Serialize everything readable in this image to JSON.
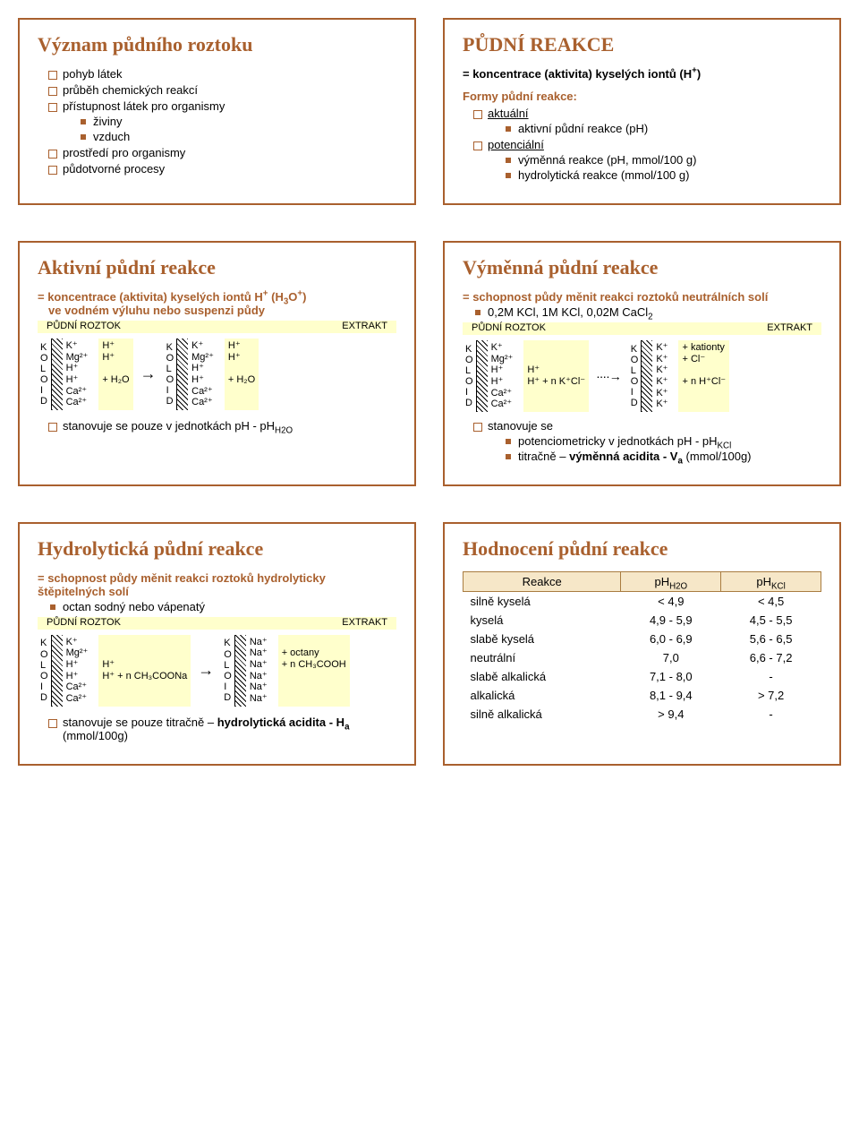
{
  "colors": {
    "accent": "#a9602e",
    "highlight": "#ffffcc",
    "table_header_bg": "#f6e7c8",
    "table_border": "#a97c40"
  },
  "panel1": {
    "title": "Význam půdního roztoku",
    "items": [
      "pohyb látek",
      "průběh chemických reakcí",
      "přístupnost látek pro organismy"
    ],
    "nested1": [
      "živiny",
      "vzduch"
    ],
    "items2": [
      "prostředí pro organismy",
      "půdotvorné procesy"
    ]
  },
  "panel2": {
    "title": "PŮDNÍ REAKCE",
    "def": "= koncentrace (aktivita) kyselých iontů (H",
    "def_sup": "+",
    "def_end": ")",
    "forms_label": "Formy půdní reakce:",
    "f1": "aktuální",
    "f1n": "aktivní půdní reakce (pH)",
    "f2": "potenciální",
    "f2n1": "výměnná reakce (pH, mmol/100 g)",
    "f2n2": "hydrolytická reakce (mmol/100 g)"
  },
  "panel3": {
    "title": "Aktivní půdní reakce",
    "def1": "= koncentrace (aktivita) kyselých iontů H",
    "def2": " (H",
    "def3": "O",
    "def4": ")",
    "def_line2": "ve vodném výluhu nebo suspenzi půdy",
    "label_left": "PŮDNÍ ROZTOK",
    "label_right": "EXTRAKT",
    "koloid": [
      "K",
      "O",
      "L",
      "O",
      "I",
      "D"
    ],
    "ions_left": [
      "K⁺",
      "Mg²⁺",
      "H⁺",
      "H⁺",
      "Ca²⁺",
      "Ca²⁺"
    ],
    "extras_left": [
      "H⁺",
      "H⁺",
      "",
      "+ H₂O",
      "",
      ""
    ],
    "ions_right": [
      "K⁺",
      "Mg²⁺",
      "H⁺",
      "H⁺",
      "Ca²⁺",
      "Ca²⁺"
    ],
    "extras_right": [
      "H⁺",
      "H⁺",
      "",
      "+ H₂O",
      "",
      ""
    ],
    "note": "stanovuje se pouze v jednotkách pH - pH",
    "note_sub": "H2O"
  },
  "panel4": {
    "title": "Výměnná půdní reakce",
    "def": "= schopnost půdy měnit reakci roztoků neutrálních solí",
    "salts": "0,2M KCl, 1M KCl, 0,02M CaCl",
    "salts_sub": "2",
    "label_left": "PŮDNÍ ROZTOK",
    "label_right": "EXTRAKT",
    "koloid": [
      "K",
      "O",
      "L",
      "O",
      "I",
      "D"
    ],
    "ions_left": [
      "K⁺",
      "Mg²⁺",
      "H⁺",
      "H⁺",
      "Ca²⁺",
      "Ca²⁺"
    ],
    "extras_left": [
      "",
      "",
      "H⁺",
      "H⁺   + n K⁺Cl⁻",
      "",
      ""
    ],
    "ions_right": [
      "K⁺",
      "K⁺",
      "K⁺",
      "K⁺",
      "K⁺",
      "K⁺"
    ],
    "extras_right": [
      "+ kationty",
      "+ Cl⁻",
      "",
      "+ n H⁺Cl⁻",
      "",
      ""
    ],
    "note0": "stanovuje se",
    "note1": "potenciometricky v jednotkách pH - pH",
    "note1_sub": "KCl",
    "note2a": "titračně – ",
    "note2b": "výměnná acidita - V",
    "note2_sub": "a",
    "note2c": " (mmol/100g)"
  },
  "panel5": {
    "title": "Hydrolytická půdní reakce",
    "def": "= schopnost půdy měnit reakci roztoků hydrolyticky štěpitelných solí",
    "salt": "octan sodný nebo vápenatý",
    "label_left": "PŮDNÍ ROZTOK",
    "label_right": "EXTRAKT",
    "koloid": [
      "K",
      "O",
      "L",
      "O",
      "I",
      "D"
    ],
    "ions_left": [
      "K⁺",
      "Mg²⁺",
      "H⁺",
      "H⁺",
      "Ca²⁺",
      "Ca²⁺"
    ],
    "extras_left": [
      "",
      "",
      "H⁺",
      "H⁺  + n CH₃COONa",
      "",
      ""
    ],
    "ions_right": [
      "Na⁺",
      "Na⁺",
      "Na⁺",
      "Na⁺",
      "Na⁺",
      "Na⁺"
    ],
    "extras_right": [
      "",
      "+ octany",
      "+ n CH₃COOH",
      "",
      "",
      ""
    ],
    "note1": "stanovuje se pouze titračně – ",
    "note2": "hydrolytická acidita - H",
    "note_sub": "a",
    "note3": " (mmol/100g)"
  },
  "panel6": {
    "title": "Hodnocení půdní reakce",
    "headers": [
      "Reakce",
      "pH",
      "pH"
    ],
    "header_subs": [
      "",
      "H2O",
      "KCl"
    ],
    "rows": [
      [
        "silně kyselá",
        "< 4,9",
        "< 4,5"
      ],
      [
        "kyselá",
        "4,9 - 5,9",
        "4,5 - 5,5"
      ],
      [
        "slabě kyselá",
        "6,0 - 6,9",
        "5,6 - 6,5"
      ],
      [
        "neutrální",
        "7,0",
        "6,6 - 7,2"
      ],
      [
        "slabě alkalická",
        "7,1 - 8,0",
        "-"
      ],
      [
        "alkalická",
        "8,1 - 9,4",
        "> 7,2"
      ],
      [
        "silně alkalická",
        "> 9,4",
        "-"
      ]
    ]
  }
}
